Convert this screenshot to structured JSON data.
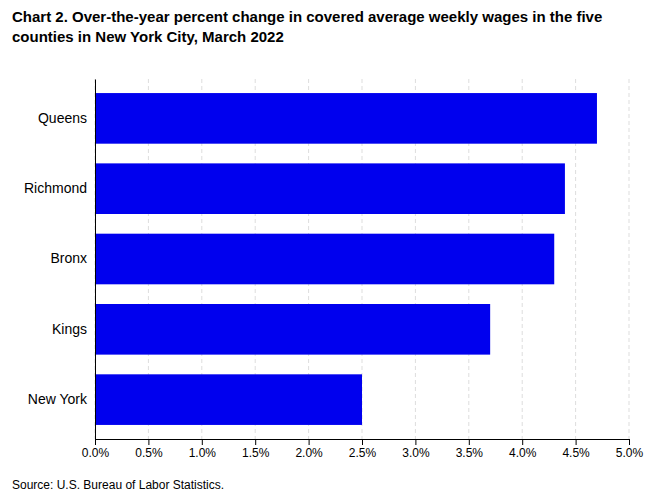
{
  "chart_data": {
    "type": "bar",
    "orientation": "horizontal",
    "title": "Chart 2. Over-the-year percent change in covered average weekly wages in the five\ncounties in New York City, March 2022",
    "annotations": [
      "Source: U.S. Bureau of Labor Statistics."
    ],
    "categories": [
      "New York",
      "Kings",
      "Bronx",
      "Richmond",
      "Queens"
    ],
    "values": [
      0.025,
      0.037,
      0.043,
      0.044,
      0.047
    ],
    "color": "#0000ee",
    "xlim": [
      0.0,
      0.05
    ],
    "xticks": [
      {
        "value": 0.0,
        "label": "0.0%"
      },
      {
        "value": 0.005,
        "label": "0.5%"
      },
      {
        "value": 0.01,
        "label": "1.0%"
      },
      {
        "value": 0.015,
        "label": "1.5%"
      },
      {
        "value": 0.02,
        "label": "2.0%"
      },
      {
        "value": 0.025,
        "label": "2.5%"
      },
      {
        "value": 0.03,
        "label": "3.0%"
      },
      {
        "value": 0.035,
        "label": "3.5%"
      },
      {
        "value": 0.04,
        "label": "4.0%"
      },
      {
        "value": 0.045,
        "label": "4.5%"
      },
      {
        "value": 0.05,
        "label": "5.0%"
      }
    ],
    "grid": true
  }
}
